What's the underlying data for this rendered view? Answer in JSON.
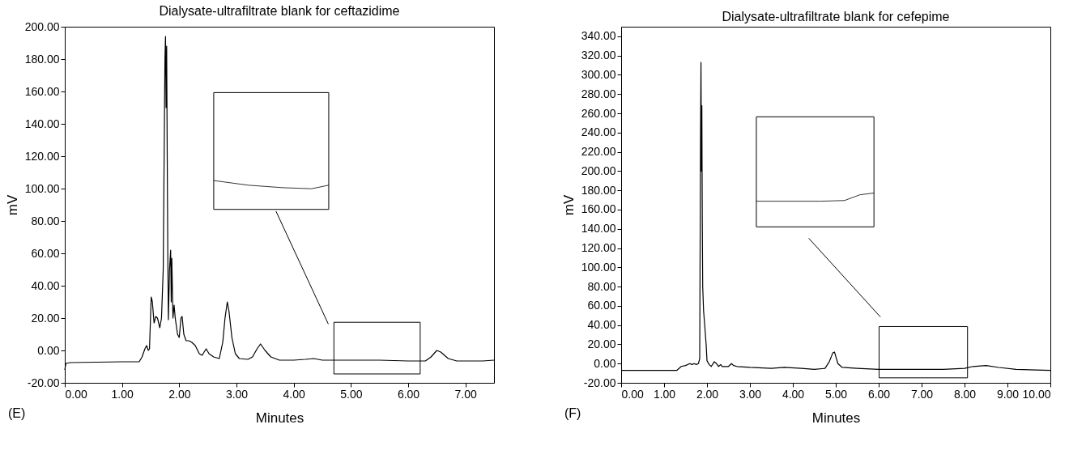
{
  "chart_data": [
    {
      "type": "line",
      "title": "Dialysate-ultrafiltrate blank for ceftazidime",
      "xlabel": "Minutes",
      "ylabel": "mV",
      "color": "#000000",
      "grid": false,
      "annotations": [
        "(E)"
      ],
      "x": [
        0.0,
        0.02,
        0.1,
        1.0,
        1.3,
        1.35,
        1.4,
        1.43,
        1.46,
        1.48,
        1.51,
        1.53,
        1.56,
        1.59,
        1.62,
        1.66,
        1.69,
        1.72,
        1.75,
        1.76,
        1.77,
        1.78,
        1.79,
        1.8,
        1.81,
        1.83,
        1.85,
        1.86,
        1.87,
        1.89,
        1.91,
        1.93,
        1.97,
        2.0,
        2.03,
        2.05,
        2.08,
        2.12,
        2.17,
        2.22,
        2.28,
        2.35,
        2.4,
        2.47,
        2.52,
        2.6,
        2.7,
        2.76,
        2.8,
        2.84,
        2.87,
        2.92,
        2.98,
        3.05,
        3.2,
        3.28,
        3.36,
        3.42,
        3.5,
        3.6,
        3.75,
        4.0,
        4.2,
        4.35,
        4.5,
        5.0,
        5.5,
        6.0,
        6.3,
        6.4,
        6.5,
        6.57,
        6.7,
        6.85,
        7.3,
        7.5
      ],
      "values": [
        -12,
        -8,
        -7.5,
        -7,
        -7,
        -4,
        1,
        3,
        0,
        1,
        33,
        30,
        17,
        21,
        20,
        14,
        20,
        50,
        180,
        194,
        150,
        188,
        120,
        60,
        19,
        50,
        62,
        30,
        57,
        20,
        28,
        20,
        10,
        8,
        20,
        21,
        10,
        6,
        6,
        5,
        3,
        -2,
        -3,
        1,
        -2,
        -4,
        -5,
        5,
        20,
        30,
        24,
        8,
        -2,
        -5,
        -5.5,
        -4,
        1,
        4,
        0,
        -4,
        -6,
        -6,
        -5.5,
        -5,
        -6,
        -6,
        -6,
        -6.5,
        -6.5,
        -4,
        0,
        -1,
        -5,
        -6.5,
        -6.5,
        -6
      ],
      "xlim": [
        0,
        7.5
      ],
      "ylim": [
        -20,
        200
      ],
      "xticks": [
        {
          "value": 0,
          "label": "0.00"
        },
        {
          "value": 1,
          "label": "1.00"
        },
        {
          "value": 2,
          "label": "2.00"
        },
        {
          "value": 3,
          "label": "3.00"
        },
        {
          "value": 4,
          "label": "4.00"
        },
        {
          "value": 5,
          "label": "5.00"
        },
        {
          "value": 6,
          "label": "6.00"
        },
        {
          "value": 7,
          "label": "7.00"
        }
      ],
      "yticks": [
        {
          "value": -20,
          "label": "-20.00"
        },
        {
          "value": 0,
          "label": "0.00"
        },
        {
          "value": 20,
          "label": "20.00"
        },
        {
          "value": 40,
          "label": "40.00"
        },
        {
          "value": 60,
          "label": "60.00"
        },
        {
          "value": 80,
          "label": "80.00"
        },
        {
          "value": 100,
          "label": "100.00"
        },
        {
          "value": 120,
          "label": "120.00"
        },
        {
          "value": 140,
          "label": "140.00"
        },
        {
          "value": 160,
          "label": "160.00"
        },
        {
          "value": 180,
          "label": "180.00"
        },
        {
          "value": 200,
          "label": "200.00"
        }
      ]
    },
    {
      "type": "line",
      "title": "Dialysate-ultrafiltrate blank for cefepime",
      "xlabel": "Minutes",
      "ylabel": "mV",
      "color": "#000000",
      "grid": false,
      "annotations": [
        "(F)"
      ],
      "x": [
        0,
        1.3,
        1.4,
        1.5,
        1.6,
        1.65,
        1.7,
        1.75,
        1.8,
        1.83,
        1.85,
        1.86,
        1.87,
        1.88,
        1.89,
        1.9,
        1.92,
        1.95,
        1.98,
        2.0,
        2.05,
        2.1,
        2.17,
        2.22,
        2.27,
        2.32,
        2.35,
        2.42,
        2.5,
        2.57,
        2.62,
        2.7,
        3.0,
        3.5,
        3.8,
        4.2,
        4.5,
        4.75,
        4.85,
        4.93,
        4.97,
        5.05,
        5.15,
        5.5,
        6.0,
        6.5,
        7.0,
        7.5,
        8.0,
        8.2,
        8.5,
        8.8,
        9.2,
        10
      ],
      "values": [
        -7,
        -7,
        -3,
        -2,
        0,
        -1,
        0,
        -1,
        0,
        5,
        240,
        313,
        200,
        268,
        150,
        80,
        55,
        38,
        20,
        3,
        -1,
        -3,
        2,
        0,
        -3,
        -1,
        -3,
        -3,
        -3,
        0,
        -2,
        -3,
        -4,
        -5,
        -4,
        -5,
        -6,
        -5,
        2,
        11,
        12,
        0,
        -4,
        -5,
        -6,
        -6,
        -6,
        -6,
        -5,
        -3,
        -2,
        -4,
        -6,
        -7
      ],
      "xlim": [
        0,
        10
      ],
      "ylim": [
        -20,
        350
      ],
      "xticks": [
        {
          "value": 0,
          "label": "0.00"
        },
        {
          "value": 1,
          "label": "1.00"
        },
        {
          "value": 2,
          "label": "2.00"
        },
        {
          "value": 3,
          "label": "3.00"
        },
        {
          "value": 4,
          "label": "4.00"
        },
        {
          "value": 5,
          "label": "5.00"
        },
        {
          "value": 6,
          "label": "6.00"
        },
        {
          "value": 7,
          "label": "7.00"
        },
        {
          "value": 8,
          "label": "8.00"
        },
        {
          "value": 9,
          "label": "9.00"
        },
        {
          "value": 10,
          "label": "10.00"
        }
      ],
      "yticks": [
        {
          "value": -20,
          "label": "-20.00"
        },
        {
          "value": 0,
          "label": "0.00"
        },
        {
          "value": 20,
          "label": "20.00"
        },
        {
          "value": 40,
          "label": "40.00"
        },
        {
          "value": 60,
          "label": "60.00"
        },
        {
          "value": 80,
          "label": "80.00"
        },
        {
          "value": 100,
          "label": "100.00"
        },
        {
          "value": 120,
          "label": "120.00"
        },
        {
          "value": 140,
          "label": "140.00"
        },
        {
          "value": 160,
          "label": "160.00"
        },
        {
          "value": 180,
          "label": "180.00"
        },
        {
          "value": 200,
          "label": "200.00"
        },
        {
          "value": 220,
          "label": "220.00"
        },
        {
          "value": 240,
          "label": "240.00"
        },
        {
          "value": 260,
          "label": "260.00"
        },
        {
          "value": 280,
          "label": "280.00"
        },
        {
          "value": 300,
          "label": "300.00"
        },
        {
          "value": 320,
          "label": "320.00"
        },
        {
          "value": 340,
          "label": "340.00"
        }
      ]
    }
  ]
}
